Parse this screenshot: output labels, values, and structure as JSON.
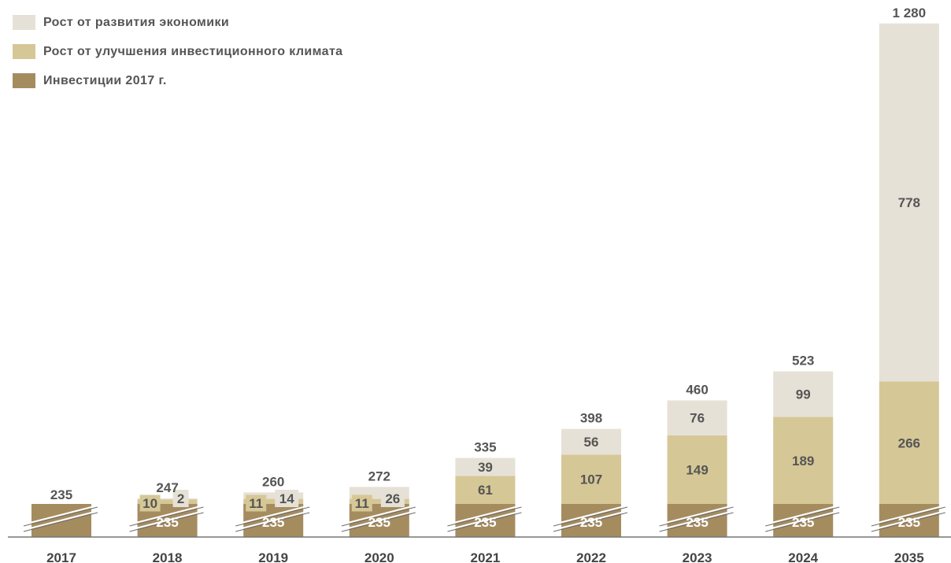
{
  "legend": [
    {
      "label": "Рост от развития экономики",
      "color": "#E6E1D6"
    },
    {
      "label": "Рост от улучшения инвестиционного климата",
      "color": "#D6C796"
    },
    {
      "label": "Инвестиции 2017 г.",
      "color": "#A58C5F"
    }
  ],
  "chart_data": {
    "type": "bar",
    "stacked": true,
    "categories": [
      "2017",
      "2018",
      "2019",
      "2020",
      "2021",
      "2022",
      "2023",
      "2024",
      "2035"
    ],
    "series": [
      {
        "name": "Инвестиции 2017 г.",
        "color": "#A58C5F",
        "values": [
          235,
          235,
          235,
          235,
          235,
          235,
          235,
          235,
          235
        ]
      },
      {
        "name": "Рост от улучшения инвестиционного климата",
        "color": "#D6C796",
        "values": [
          null,
          10,
          11,
          11,
          61,
          107,
          149,
          189,
          266
        ]
      },
      {
        "name": "Рост от развития экономики",
        "color": "#E6E1D6",
        "values": [
          null,
          2,
          14,
          26,
          39,
          56,
          76,
          99,
          778
        ]
      }
    ],
    "totals": [
      "235",
      "247",
      "260",
      "272",
      "335",
      "398",
      "460",
      "523",
      "1 280"
    ],
    "axis_break": true,
    "grid": false,
    "legend_position": "top-left"
  }
}
